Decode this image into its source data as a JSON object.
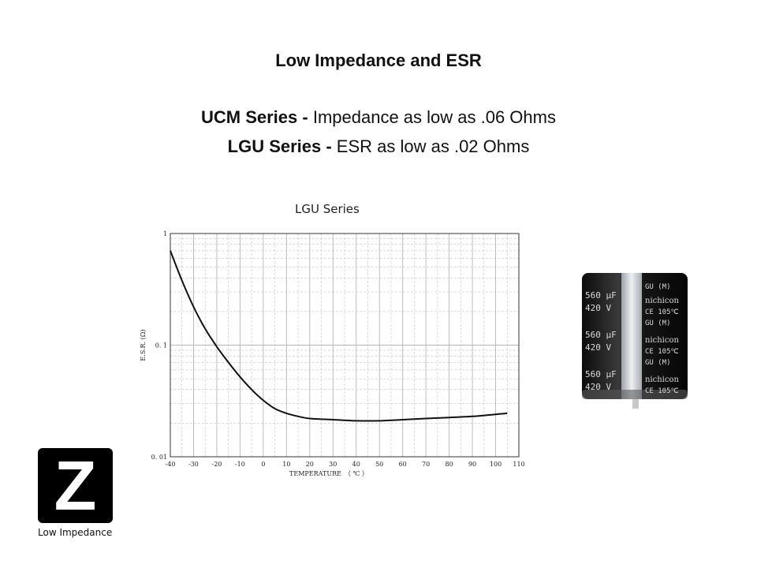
{
  "slide": {
    "title": "Low Impedance and ESR",
    "lines": [
      {
        "bold": "UCM Series - ",
        "text": "Impedance as low as .06 Ohms"
      },
      {
        "bold": "LGU Series - ",
        "text": "ESR as low as .02 Ohms"
      }
    ]
  },
  "chart_data": {
    "type": "line",
    "title": "LGU Series",
    "xlabel": "TEMPERATURE　（ ℃ ）",
    "ylabel": "E.S.R. (Ω)",
    "xlim": [
      -40,
      110
    ],
    "ylim": [
      0.01,
      1
    ],
    "yscale": "log",
    "grid": true,
    "x_ticks": [
      "-40",
      "-30",
      "-20",
      "-10",
      "0",
      "10",
      "20",
      "30",
      "40",
      "50",
      "60",
      "70",
      "80",
      "90",
      "100",
      "110"
    ],
    "y_ticks": [
      {
        "label": "1",
        "value": 1
      },
      {
        "label": "0. 1",
        "value": 0.1
      },
      {
        "label": "0. 01",
        "value": 0.01
      }
    ],
    "series": [
      {
        "x": [
          -40,
          -35,
          -30,
          -25,
          -20,
          -15,
          -10,
          -5,
          0,
          5,
          10,
          15,
          20,
          30,
          40,
          50,
          60,
          70,
          80,
          90,
          100,
          105
        ],
        "values": [
          0.7,
          0.38,
          0.22,
          0.14,
          0.097,
          0.07,
          0.052,
          0.04,
          0.032,
          0.027,
          0.0245,
          0.023,
          0.022,
          0.0215,
          0.021,
          0.021,
          0.0215,
          0.022,
          0.0225,
          0.023,
          0.024,
          0.0245
        ]
      }
    ]
  },
  "product": {
    "capacitor_marking": {
      "brand": "nichicon",
      "value": "560 µF",
      "voltage": "420 V",
      "temp": "CE 105℃",
      "series": "GU (M)"
    }
  },
  "logo": {
    "letter": "Z",
    "caption": "Low Impedance"
  },
  "colors": {
    "curve": "#111111",
    "grid": "#b5b5b5",
    "capacitor_body": "#1a1a1a",
    "capacitor_sleeve": "#cfd2d6"
  }
}
